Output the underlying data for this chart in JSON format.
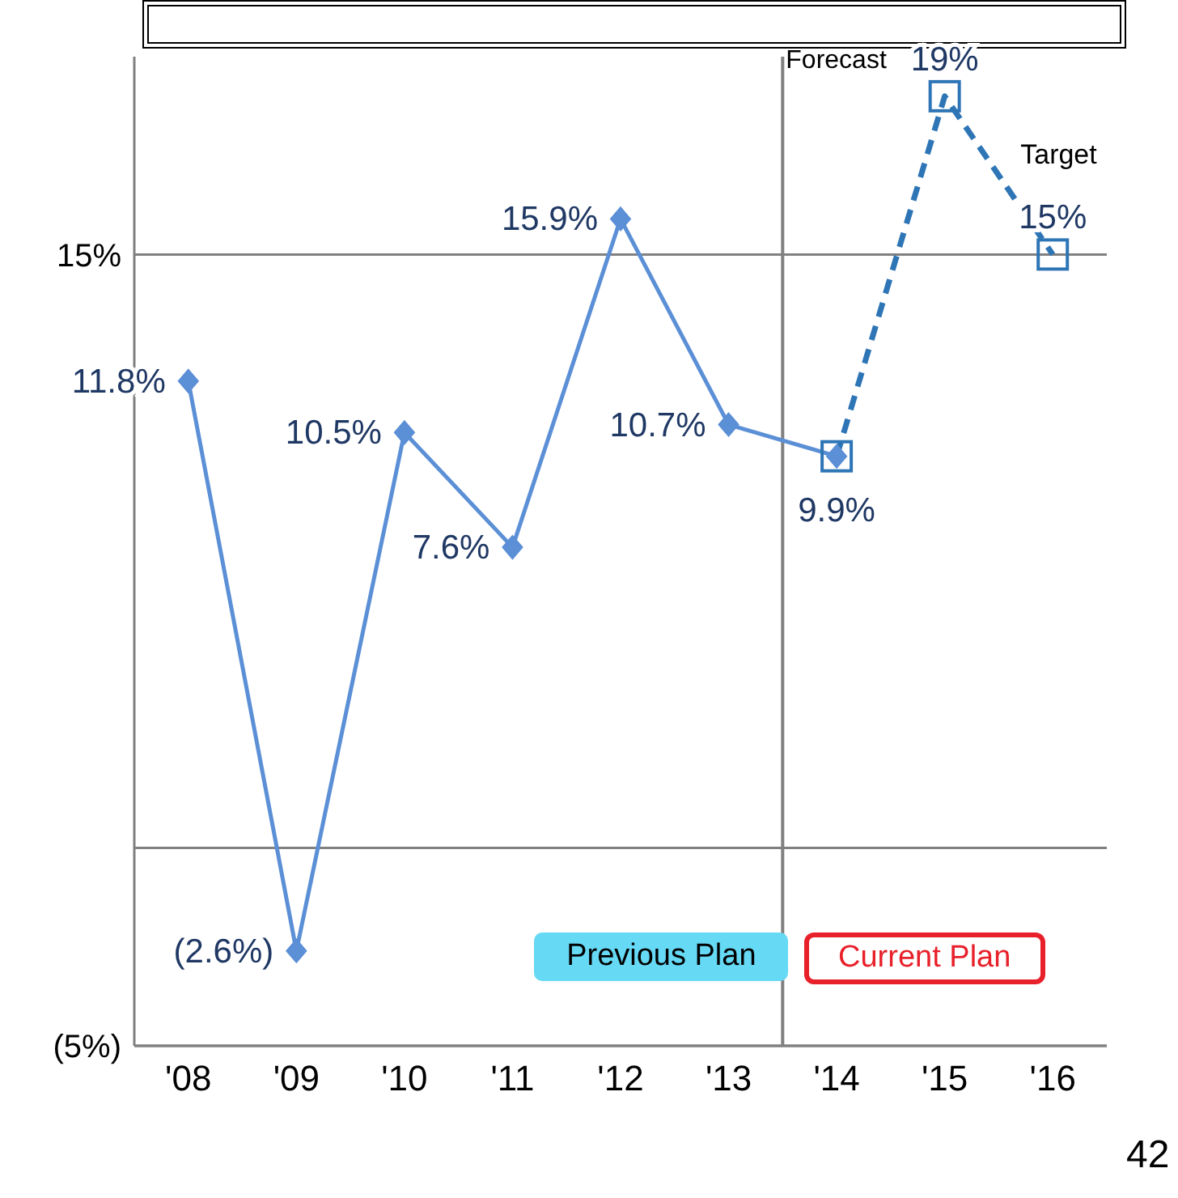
{
  "chart_data": {
    "type": "line",
    "categories": [
      "'08",
      "'09",
      "'10",
      "'11",
      "'12",
      "'13",
      "'14",
      "'15",
      "'16"
    ],
    "series": [
      {
        "color": "#5b8fd6",
        "marker": "diamond",
        "line_style": "solid",
        "values": [
          11.8,
          -2.6,
          10.5,
          7.6,
          15.9,
          10.7,
          9.9,
          null,
          null
        ],
        "value_labels": [
          "11.8%",
          "(2.6%)",
          "10.5%",
          "7.6%",
          "15.9%",
          "10.7%",
          "9.9%",
          null,
          null
        ]
      },
      {
        "color": "#2e75b6",
        "marker": "square",
        "line_style": "dashed",
        "values": [
          null,
          null,
          null,
          null,
          null,
          null,
          9.9,
          19,
          15
        ],
        "value_labels": [
          null,
          null,
          null,
          null,
          null,
          null,
          null,
          "19%",
          "15%"
        ]
      }
    ],
    "ylim": [
      -5,
      20
    ],
    "yticks": [
      {
        "value": -5,
        "label": "(5%)"
      },
      {
        "value": 0,
        "label": null
      },
      {
        "value": 15,
        "label": "15%"
      }
    ],
    "grid": "y",
    "ref_lines": [
      {
        "axis": "x",
        "value": "'14",
        "color": "#808080"
      }
    ],
    "annotations": [
      "Forecast",
      "Previous Plan",
      "Current Plan",
      "Target",
      "42"
    ]
  }
}
